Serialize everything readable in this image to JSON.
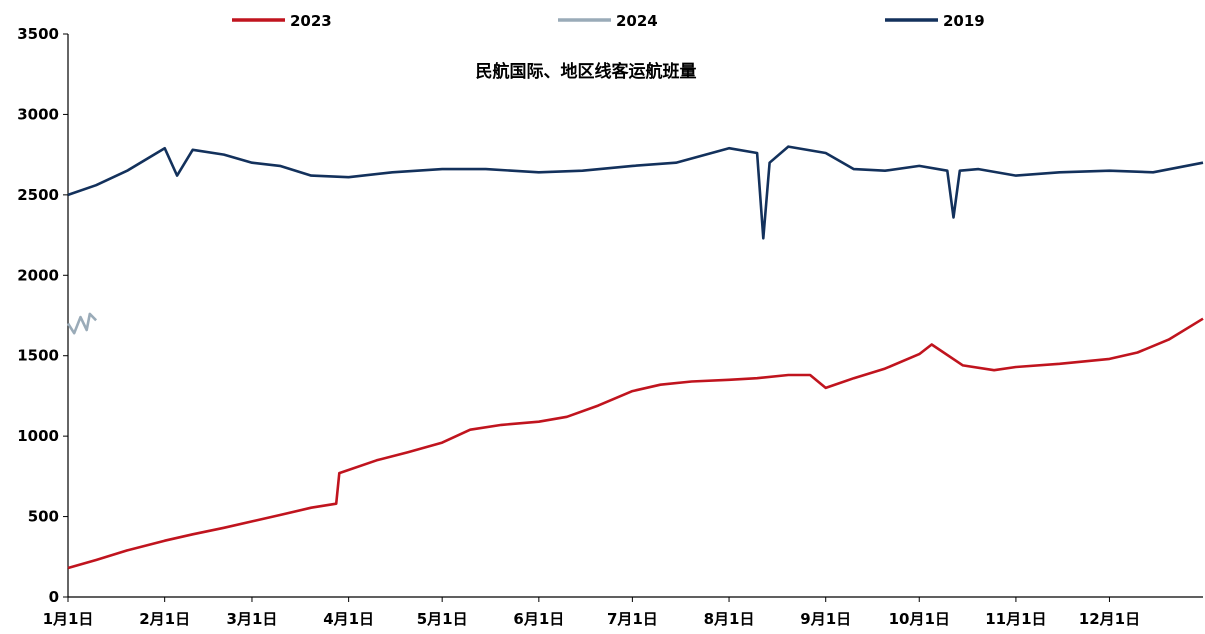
{
  "chart_data": {
    "type": "line",
    "title": "民航国际、地区线客运航班量",
    "xlabel": "",
    "ylabel": "",
    "ylim": [
      0,
      3500
    ],
    "yticks": [
      0,
      500,
      1000,
      1500,
      2000,
      2500,
      3000,
      3500
    ],
    "x_domain": [
      "1月1日",
      "12月31日"
    ],
    "xticks": [
      "1月1日",
      "2月1日",
      "3月1日",
      "4月1日",
      "5月1日",
      "6月1日",
      "7月1日",
      "8月1日",
      "9月1日",
      "10月1日",
      "11月1日",
      "12月1日"
    ],
    "legend_position": "top",
    "grid": false,
    "series": [
      {
        "name": "2023",
        "color": "#c0141e",
        "x": [
          "1月1日",
          "1月10日",
          "1月20日",
          "2月1日",
          "2月10日",
          "2月20日",
          "3月1日",
          "3月10日",
          "3月20日",
          "3月28日",
          "3月29日",
          "4月10日",
          "4月20日",
          "5月1日",
          "5月10日",
          "5月20日",
          "6月1日",
          "6月10日",
          "6月20日",
          "7月1日",
          "7月10日",
          "7月20日",
          "8月1日",
          "8月10日",
          "8月20日",
          "8月27日",
          "9月1日",
          "9月10日",
          "9月20日",
          "10月1日",
          "10月5日",
          "10月15日",
          "10月25日",
          "11月1日",
          "11月15日",
          "12月1日",
          "12月10日",
          "12月20日",
          "12月31日"
        ],
        "values": [
          180,
          230,
          290,
          350,
          390,
          430,
          470,
          510,
          555,
          580,
          770,
          850,
          900,
          960,
          1040,
          1070,
          1090,
          1120,
          1190,
          1280,
          1320,
          1340,
          1350,
          1360,
          1380,
          1380,
          1300,
          1360,
          1420,
          1510,
          1570,
          1440,
          1410,
          1430,
          1450,
          1480,
          1520,
          1600,
          1730
        ]
      },
      {
        "name": "2024",
        "color": "#9aabb8",
        "x": [
          "1月1日",
          "1月3日",
          "1月5日",
          "1月7日",
          "1月8日",
          "1月10日"
        ],
        "values": [
          1700,
          1640,
          1740,
          1660,
          1760,
          1720
        ]
      },
      {
        "name": "2019",
        "color": "#13315c",
        "x": [
          "1月1日",
          "1月10日",
          "1月20日",
          "2月1日",
          "2月5日",
          "2月10日",
          "2月20日",
          "3月1日",
          "3月10日",
          "3月20日",
          "4月1日",
          "4月15日",
          "5月1日",
          "5月15日",
          "6月1日",
          "6月15日",
          "7月1日",
          "7月15日",
          "8月1日",
          "8月10日",
          "8月12日",
          "8月14日",
          "8月20日",
          "9月1日",
          "9月10日",
          "9月20日",
          "10月1日",
          "10月10日",
          "10月12日",
          "10月14日",
          "10月20日",
          "11月1日",
          "11月15日",
          "12月1日",
          "12月15日",
          "12月31日"
        ],
        "values": [
          2500,
          2560,
          2650,
          2790,
          2620,
          2780,
          2750,
          2700,
          2680,
          2620,
          2610,
          2640,
          2660,
          2660,
          2640,
          2650,
          2680,
          2700,
          2790,
          2760,
          2230,
          2700,
          2800,
          2760,
          2660,
          2650,
          2680,
          2650,
          2360,
          2650,
          2660,
          2620,
          2640,
          2650,
          2640,
          2700
        ]
      }
    ]
  }
}
